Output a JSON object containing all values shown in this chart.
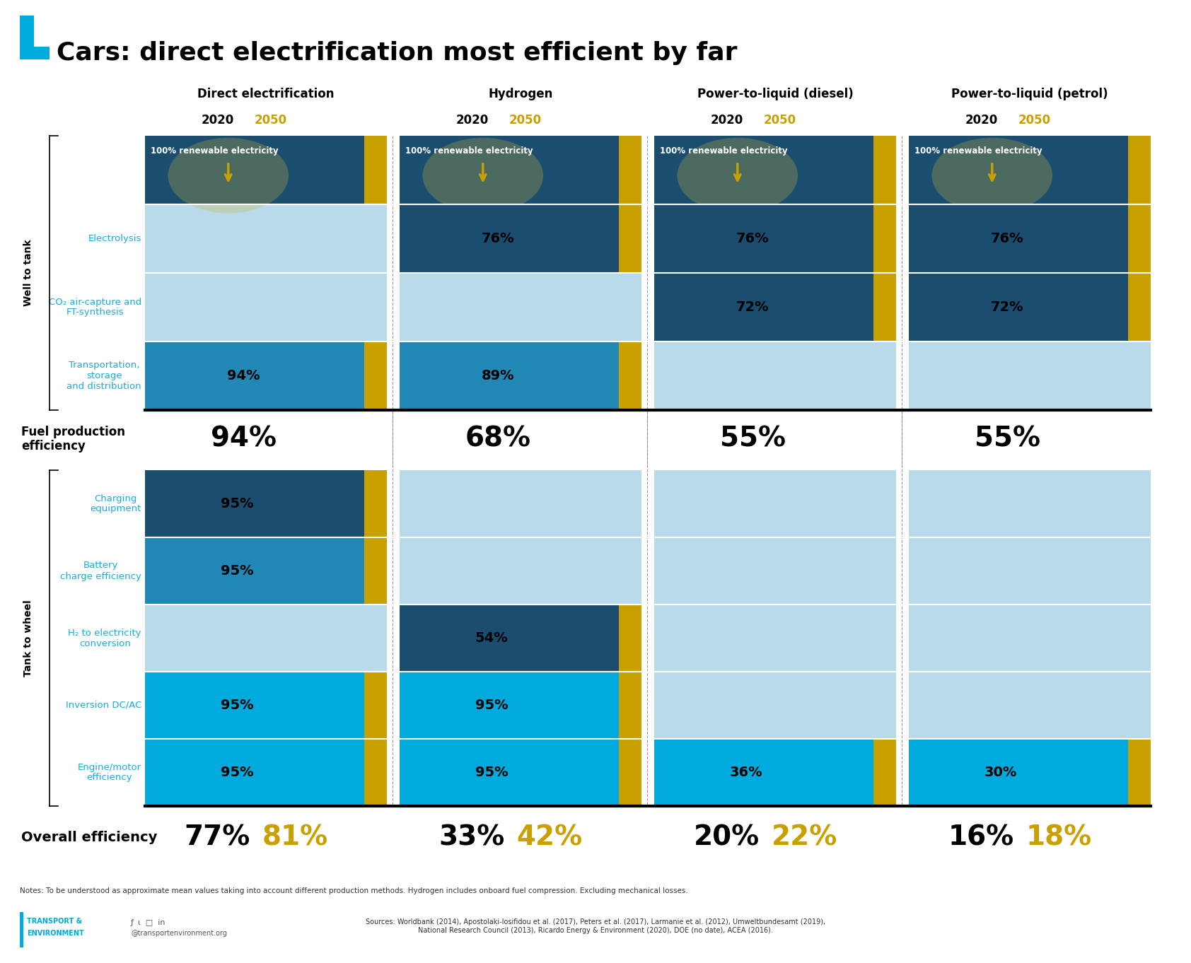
{
  "title": "Cars: direct electrification most efficient by far",
  "columns": [
    "Direct electrification",
    "Hydrogen",
    "Power-to-liquid (diesel)",
    "Power-to-liquid (petrol)"
  ],
  "fuel_production_efficiency": [
    "94%",
    "68%",
    "55%",
    "55%"
  ],
  "overall_2020": [
    "77%",
    "33%",
    "20%",
    "16%"
  ],
  "overall_2050": [
    "81%",
    "42%",
    "22%",
    "18%"
  ],
  "colors": {
    "dark_navy": "#1a4d6e",
    "medium_blue": "#2187b5",
    "light_blue": "#b8daea",
    "bright_blue": "#00aadc",
    "gold": "#c8a000",
    "white": "#ffffff",
    "black": "#000000",
    "cyan_label": "#1aabdc"
  },
  "notes": "Notes: To be understood as approximate mean values taking into account different production methods. Hydrogen includes onboard fuel compression. Excluding mechanical losses.",
  "sources": "Sources: Worldbank (2014), Apostolaki-Iosifidou et al. (2017), Peters et al. (2017), Larmanie et al. (2012), Umweltbundesamt (2019),\nNational Research Council (2013), Ricardo Energy & Environment (2020), DOE (no date), ACEA (2016)."
}
